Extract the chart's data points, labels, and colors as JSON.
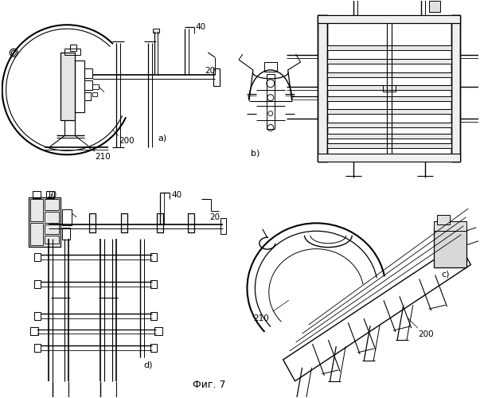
{
  "figure_title": "Фиг. 7",
  "background_color": "#ffffff",
  "fig_width": 6.03,
  "fig_height": 5.0,
  "dpi": 100,
  "label_a": "a)",
  "label_b": "b)",
  "label_c": "c)",
  "label_d": "d)"
}
